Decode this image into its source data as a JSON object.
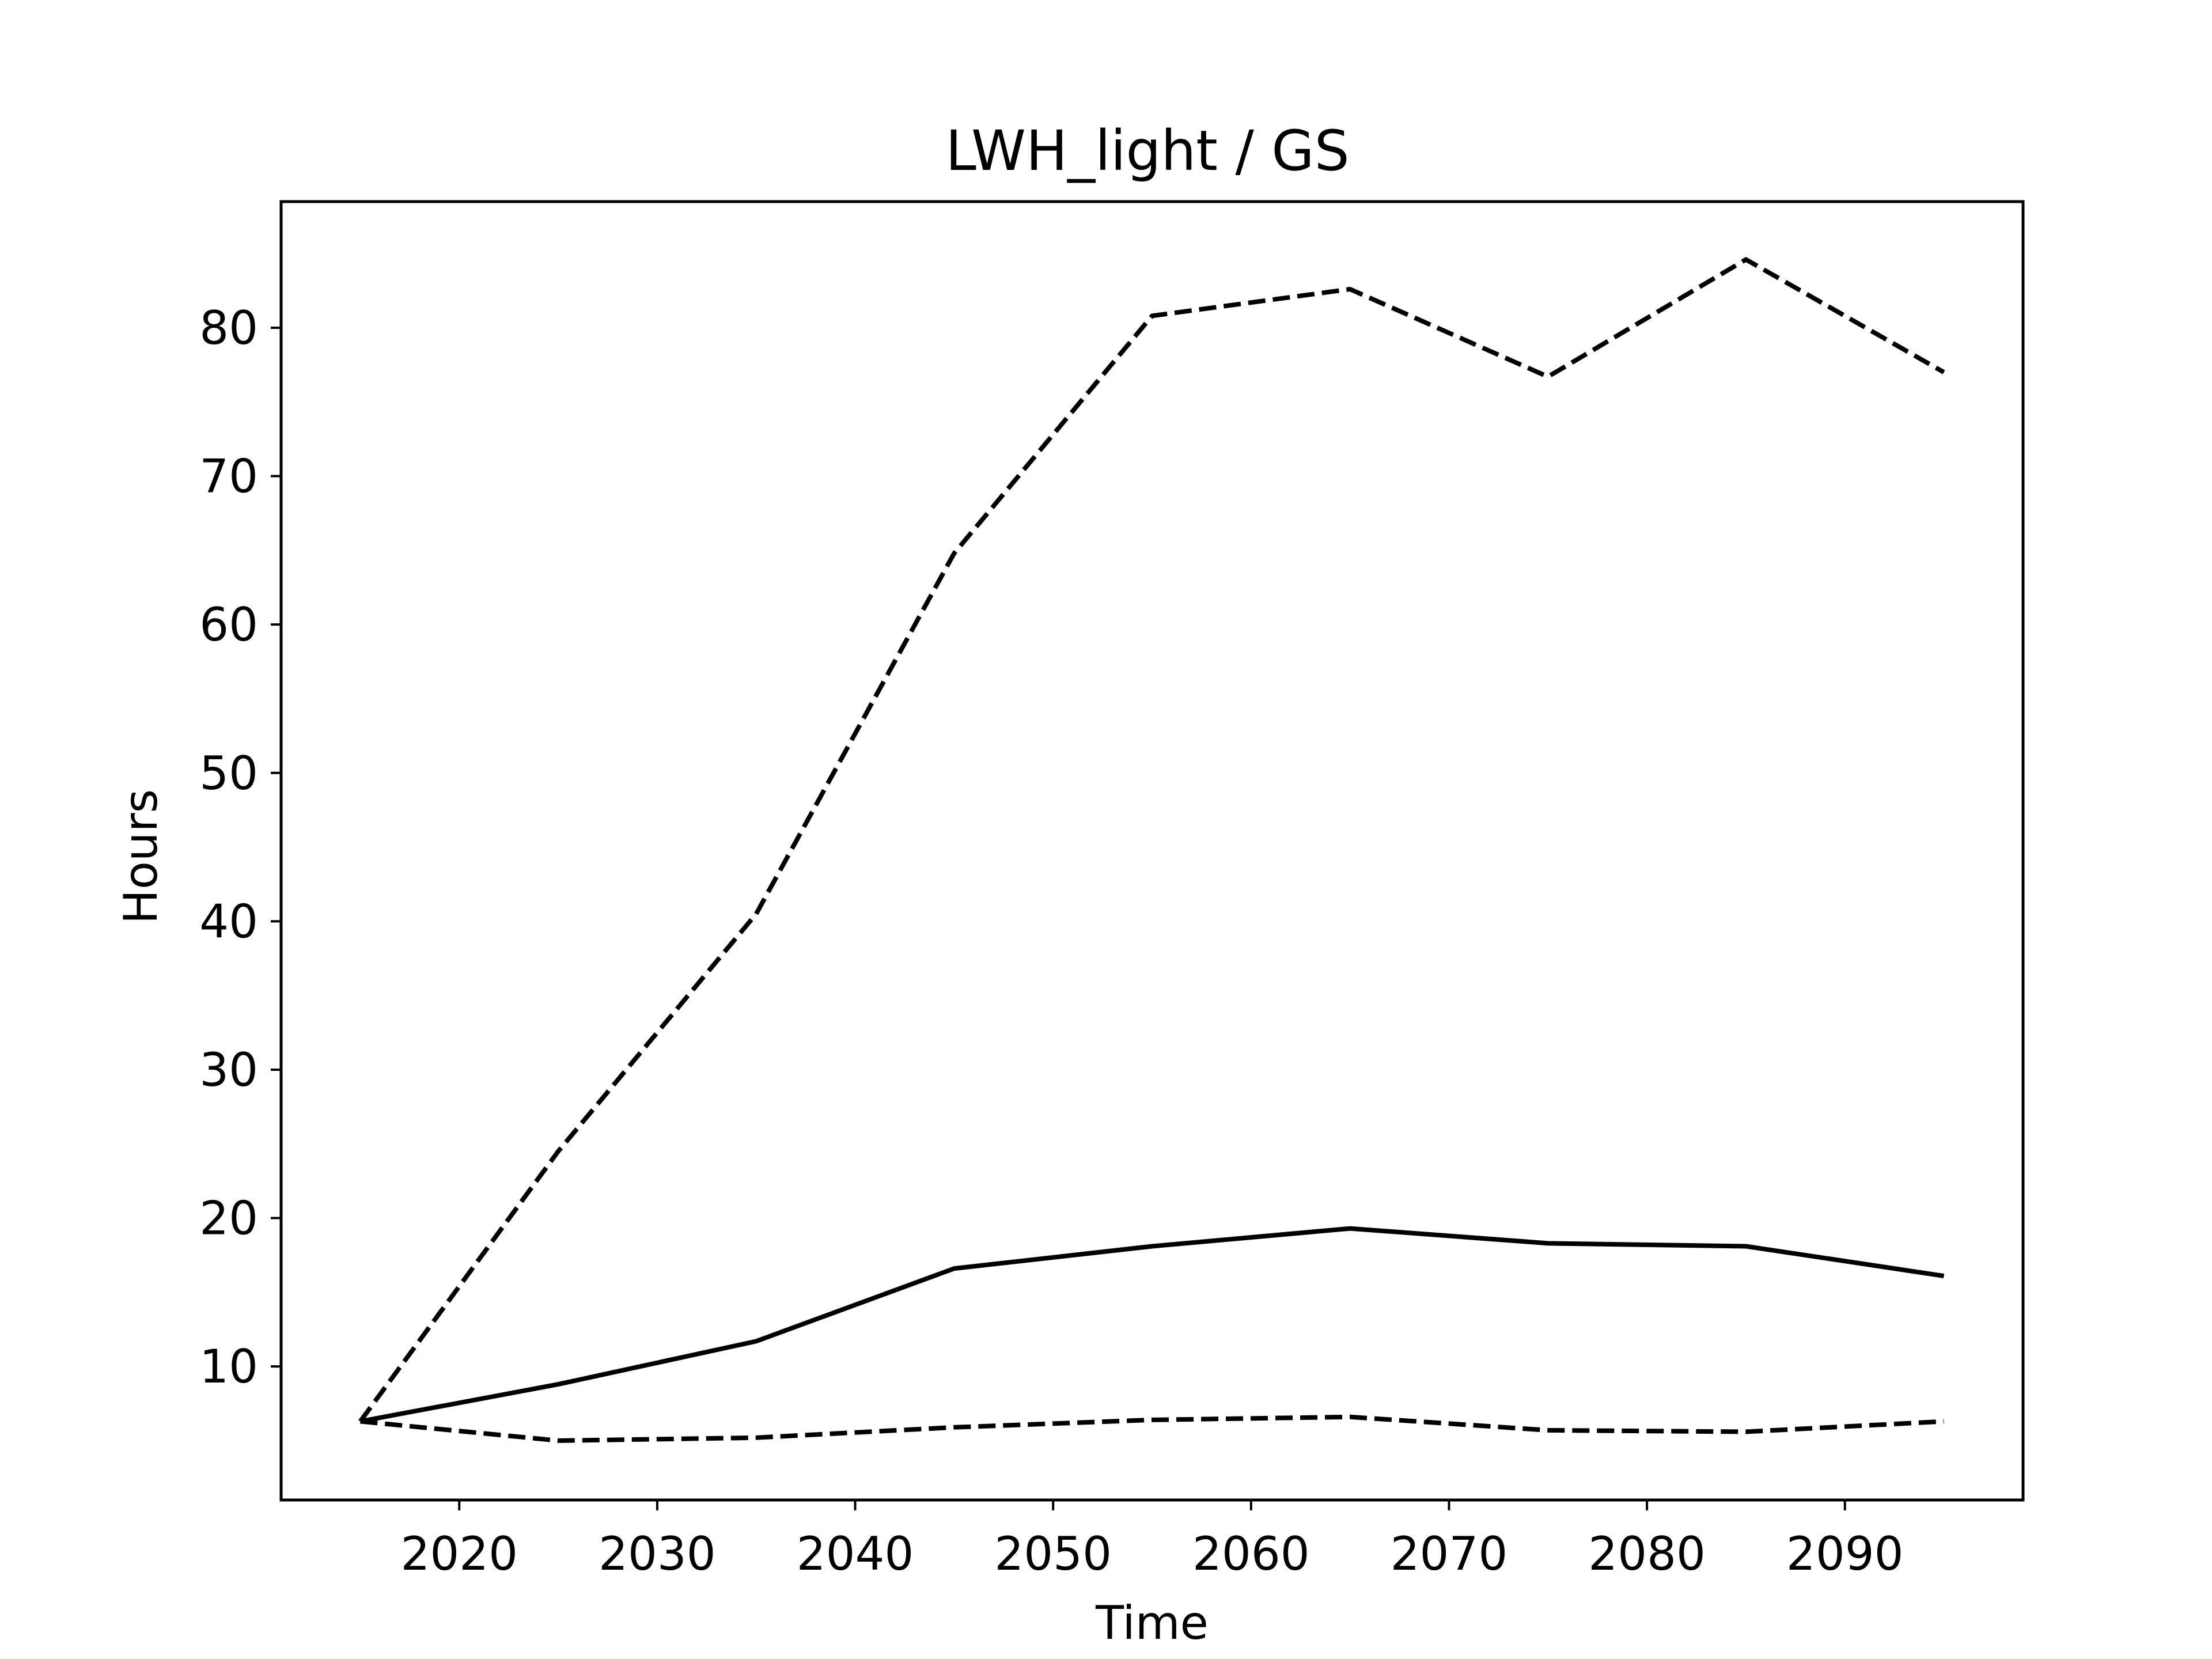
{
  "chart_data": {
    "type": "line",
    "title": "LWH_light / GS",
    "xlabel": "Time",
    "ylabel": "Hours",
    "xlim": [
      2011,
      2099
    ],
    "ylim": [
      1,
      88.5
    ],
    "grid": false,
    "x_ticks": [
      "2020",
      "2030",
      "2040",
      "2050",
      "2060",
      "2070",
      "2080",
      "2090"
    ],
    "y_ticks": [
      "10",
      "20",
      "30",
      "40",
      "50",
      "60",
      "70",
      "80"
    ],
    "x": [
      2015,
      2025,
      2035,
      2045,
      2055,
      2065,
      2075,
      2085,
      2095
    ],
    "series": [
      {
        "style": "dashed",
        "color": "#000000",
        "values": [
          6.3,
          24.5,
          40.5,
          64.8,
          80.8,
          82.6,
          76.7,
          84.6,
          77.0
        ]
      },
      {
        "style": "solid",
        "color": "#000000",
        "values": [
          6.3,
          8.8,
          11.7,
          16.6,
          18.1,
          19.3,
          18.3,
          18.1,
          16.1
        ]
      },
      {
        "style": "dashed",
        "color": "#000000",
        "values": [
          6.3,
          5.0,
          5.2,
          5.9,
          6.4,
          6.6,
          5.7,
          5.6,
          6.3
        ]
      }
    ]
  }
}
